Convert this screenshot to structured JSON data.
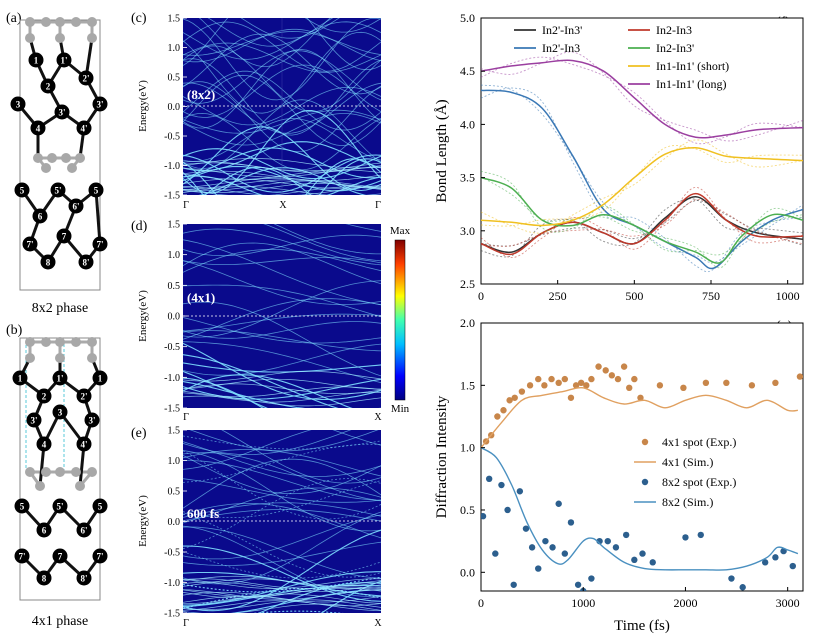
{
  "panels": {
    "a": {
      "label": "(a)",
      "caption": "8x2 phase"
    },
    "b": {
      "label": "(b)",
      "caption": "4x1 phase"
    },
    "c": {
      "label": "(c)",
      "tag": "(8x2)"
    },
    "d": {
      "label": "(d)",
      "tag": "(4x1)"
    },
    "e": {
      "label": "(e)",
      "tag": "600 fs"
    },
    "f": {
      "label": "(f)"
    },
    "g": {
      "label": "(g)"
    }
  },
  "band": {
    "ylabel": "Energy(eV)",
    "yticks": [
      "1.5",
      "1.0",
      "0.5",
      "0.0",
      "-0.5",
      "-1.0",
      "-1.5"
    ],
    "xticks_cd": [
      "Γ",
      "X",
      "Γ"
    ],
    "xticks_de": [
      "Γ",
      "X"
    ],
    "colorbar_max": "Max",
    "colorbar_min": "Min",
    "colors": {
      "bg": "#0a0a8c",
      "line": "#7ee0ff",
      "fermi": "#ffffff"
    }
  },
  "atoms": {
    "a": [
      "1",
      "1'",
      "2",
      "2'",
      "3",
      "3'",
      "3'",
      "4",
      "4'",
      "5",
      "5'",
      "5",
      "6",
      "6'",
      "7",
      "7'",
      "7'",
      "8",
      "8'"
    ],
    "b": [
      "1",
      "1'",
      "1",
      "2",
      "2'",
      "3'",
      "3",
      "3'",
      "4",
      "4'",
      "5",
      "5'",
      "5",
      "6",
      "6'",
      "7'",
      "7",
      "7'",
      "8",
      "8'"
    ]
  },
  "chart_data": [
    {
      "type": "line",
      "panel": "f",
      "xlabel": "",
      "ylabel": "Bond Length (Å)",
      "xlim": [
        0,
        1050
      ],
      "ylim": [
        2.5,
        5.0
      ],
      "xticks": [
        0,
        250,
        500,
        750,
        1000
      ],
      "yticks": [
        2.5,
        3.0,
        3.5,
        4.0,
        4.5,
        5.0
      ],
      "legend": "top",
      "series": [
        {
          "name": "In2'-In3'",
          "color": "#333333",
          "x": [
            0,
            100,
            200,
            300,
            400,
            500,
            600,
            700,
            800,
            900,
            1050
          ],
          "values": [
            2.88,
            2.8,
            2.98,
            3.08,
            2.98,
            2.88,
            3.12,
            3.32,
            3.1,
            2.98,
            2.92
          ]
        },
        {
          "name": "In2'-In3",
          "color": "#3a78b5",
          "x": [
            0,
            100,
            200,
            300,
            400,
            500,
            600,
            700,
            760,
            850,
            950,
            1050
          ],
          "values": [
            4.32,
            4.3,
            4.15,
            3.7,
            3.2,
            3.05,
            2.9,
            2.75,
            2.65,
            2.9,
            3.1,
            3.2
          ]
        },
        {
          "name": "In2-In3",
          "color": "#c0392b",
          "x": [
            0,
            100,
            200,
            300,
            400,
            500,
            600,
            700,
            800,
            900,
            1050
          ],
          "values": [
            2.88,
            2.78,
            2.98,
            3.08,
            2.98,
            2.88,
            3.1,
            3.35,
            3.1,
            2.95,
            2.95
          ]
        },
        {
          "name": "In2-In3'",
          "color": "#4caf50",
          "x": [
            0,
            100,
            200,
            300,
            400,
            500,
            600,
            700,
            780,
            850,
            950,
            1050
          ],
          "values": [
            3.5,
            3.4,
            3.1,
            3.05,
            3.15,
            3.05,
            2.9,
            2.8,
            2.7,
            2.95,
            3.15,
            3.1
          ]
        },
        {
          "name": "In1-In1' (short)",
          "color": "#f0c020",
          "x": [
            0,
            100,
            200,
            300,
            400,
            500,
            600,
            700,
            800,
            900,
            1050
          ],
          "values": [
            3.1,
            3.08,
            3.05,
            3.1,
            3.25,
            3.5,
            3.72,
            3.78,
            3.7,
            3.68,
            3.66
          ]
        },
        {
          "name": "In1-In1' (long)",
          "color": "#9b3fa0",
          "x": [
            0,
            100,
            200,
            300,
            400,
            500,
            600,
            700,
            800,
            900,
            1050
          ],
          "values": [
            4.5,
            4.55,
            4.58,
            4.6,
            4.5,
            4.25,
            4.0,
            3.88,
            3.9,
            3.95,
            3.97
          ]
        }
      ]
    },
    {
      "type": "scatter",
      "panel": "g",
      "xlabel": "Time (fs)",
      "ylabel": "Diffraction Intensity",
      "xlim": [
        0,
        3150
      ],
      "ylim": [
        -0.15,
        2.0
      ],
      "xticks": [
        0,
        1000,
        2000,
        3000
      ],
      "yticks": [
        0.0,
        0.5,
        1.0,
        1.5,
        2.0
      ],
      "legend": "right",
      "series": [
        {
          "name": "4x1 spot (Exp.)",
          "kind": "points",
          "color": "#c8864a",
          "x": [
            50,
            100,
            160,
            220,
            280,
            330,
            400,
            480,
            560,
            620,
            690,
            760,
            820,
            880,
            930,
            980,
            1030,
            1080,
            1150,
            1220,
            1280,
            1340,
            1400,
            1450,
            1500,
            1560,
            1750,
            1980,
            2200,
            2400,
            2650,
            2880,
            3120
          ],
          "values": [
            1.05,
            1.1,
            1.25,
            1.3,
            1.38,
            1.4,
            1.45,
            1.5,
            1.55,
            1.5,
            1.55,
            1.52,
            1.55,
            1.4,
            1.5,
            1.52,
            1.5,
            1.55,
            1.65,
            1.62,
            1.58,
            1.55,
            1.65,
            1.48,
            1.55,
            1.4,
            1.5,
            1.48,
            1.52,
            1.52,
            1.5,
            1.52,
            1.57
          ]
        },
        {
          "name": "4x1 (Sim.)",
          "kind": "line",
          "color": "#e0a060",
          "x": [
            0,
            200,
            400,
            600,
            800,
            1000,
            1200,
            1400,
            1600,
            1800,
            2000,
            2200,
            2400,
            2600,
            2800,
            3000,
            3100
          ],
          "values": [
            1.0,
            1.2,
            1.38,
            1.42,
            1.45,
            1.48,
            1.4,
            1.35,
            1.38,
            1.32,
            1.38,
            1.42,
            1.38,
            1.32,
            1.38,
            1.3,
            1.3
          ]
        },
        {
          "name": "8x2 spot (Exp.)",
          "kind": "points",
          "color": "#2c5f8e",
          "x": [
            20,
            80,
            140,
            200,
            260,
            320,
            380,
            440,
            500,
            560,
            630,
            700,
            760,
            820,
            880,
            950,
            1000,
            1080,
            1160,
            1240,
            1320,
            1420,
            1500,
            1580,
            1680,
            2000,
            2150,
            2450,
            2560,
            2780,
            2880,
            2960,
            3050
          ],
          "values": [
            0.45,
            0.75,
            0.15,
            0.7,
            0.5,
            -0.1,
            0.65,
            0.35,
            0.2,
            0.03,
            0.25,
            0.2,
            0.55,
            0.15,
            0.4,
            -0.1,
            -0.15,
            -0.05,
            0.25,
            0.25,
            0.2,
            0.3,
            0.1,
            0.15,
            0.08,
            0.28,
            0.3,
            -0.05,
            -0.12,
            0.08,
            0.12,
            0.17,
            0.05
          ]
        },
        {
          "name": "8x2 (Sim.)",
          "kind": "line",
          "color": "#4a90c0",
          "x": [
            0,
            150,
            300,
            450,
            600,
            750,
            850,
            1000,
            1100,
            1200,
            1400,
            1600,
            1800,
            2000,
            2200,
            2400,
            2600,
            2800,
            2900,
            3000,
            3100
          ],
          "values": [
            1.0,
            0.92,
            0.7,
            0.4,
            0.18,
            0.07,
            0.1,
            0.25,
            0.27,
            0.2,
            0.08,
            0.03,
            0.02,
            0.02,
            0.02,
            0.02,
            0.05,
            0.12,
            0.2,
            0.18,
            0.15
          ]
        }
      ]
    }
  ]
}
